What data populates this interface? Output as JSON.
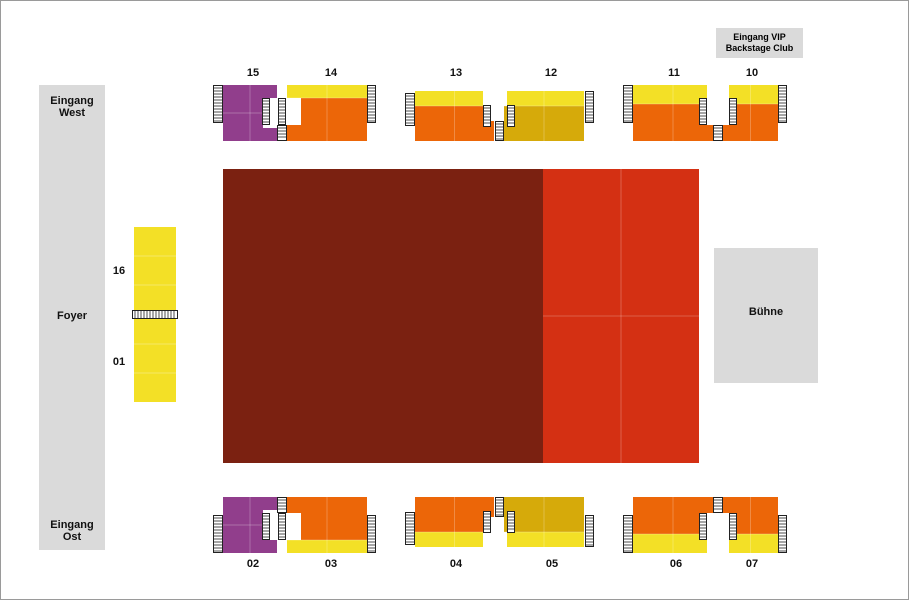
{
  "colors": {
    "purple": "#913E8C",
    "orange": "#EC6608",
    "yellow": "#F3E026",
    "dark_yellow": "#D6AA0A",
    "dark_red": "#7B2111",
    "red": "#D43013",
    "gray": "#DADADA"
  },
  "areas": {
    "entrance_west": "Eingang West",
    "foyer": "Foyer",
    "entrance_east": "Eingang Ost",
    "stage": "Bühne",
    "vip_entrance": "Eingang VIP Backstage Club"
  },
  "blocks": {
    "b01": "01",
    "b02": "02",
    "b03": "03",
    "b04": "04",
    "b05": "05",
    "b06": "06",
    "b07": "07",
    "b10": "10",
    "b11": "11",
    "b12": "12",
    "b13": "13",
    "b14": "14",
    "b15": "15",
    "b16": "16"
  },
  "floor": {
    "sections": [
      "rear-floor",
      "front-floor"
    ]
  }
}
